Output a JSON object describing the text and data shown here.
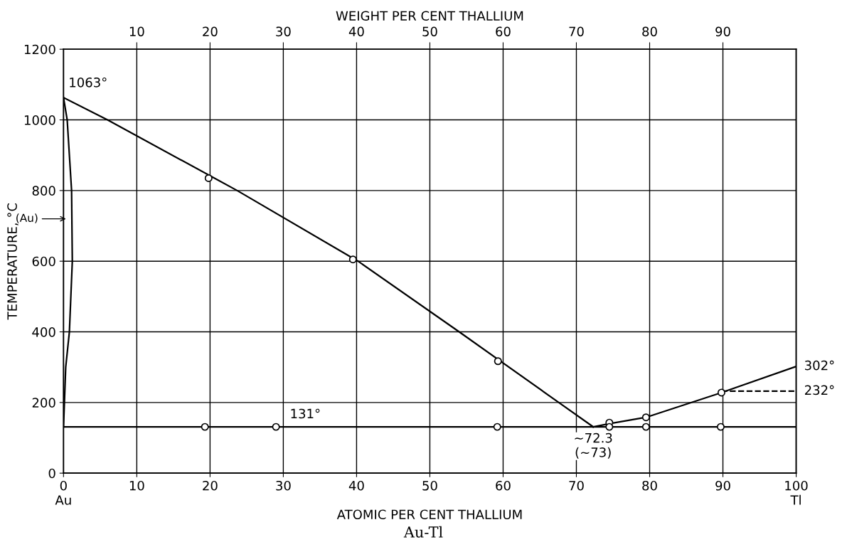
{
  "chart_data": {
    "type": "line",
    "title": "Au-Tl",
    "xlabel": "ATOMIC PER CENT THALLIUM",
    "ylabel": "TEMPERATURE, °C",
    "x2label": "WEIGHT PER CENT THALLIUM",
    "xlim": [
      0,
      100
    ],
    "xticks": [
      {
        "value": 0,
        "label": "0\nAu"
      },
      10,
      20,
      30,
      40,
      50,
      60,
      70,
      80,
      90,
      {
        "value": 100,
        "label": "100\nTl"
      }
    ],
    "x2lim": [
      0,
      100
    ],
    "x2ticks": [
      10,
      20,
      30,
      40,
      50,
      60,
      70,
      80,
      90
    ],
    "ylim": [
      0,
      1200
    ],
    "yticks": [
      0,
      200,
      400,
      600,
      800,
      1000,
      1200
    ],
    "grid": true,
    "legend": false,
    "series": [
      {
        "color": "#000000",
        "x": [
          0,
          6.0,
          23.7,
          40.2,
          54.0,
          67.6,
          72.3
        ],
        "values": [
          1063,
          1000,
          800,
          600,
          400,
          200,
          131
        ]
      },
      {
        "color": "#000000",
        "x": [
          72.3,
          74.5,
          79.5,
          89.8,
          100
        ],
        "values": [
          131,
          140,
          158,
          228,
          302
        ]
      },
      {
        "color": "#000000",
        "x": [
          0,
          100
        ],
        "values": [
          131,
          131
        ]
      },
      {
        "color": "#000000",
        "x": [
          0,
          0.3,
          0.8,
          1.2,
          1.1,
          0.5,
          0
        ],
        "values": [
          131,
          300,
          400,
          600,
          800,
          1000,
          1063
        ]
      },
      {
        "color": "#000000",
        "line_style": "dashed",
        "x": [
          89.8,
          100
        ],
        "values": [
          232,
          232
        ]
      },
      {
        "type": "scatter",
        "color": "#000000",
        "marker": "circle",
        "x": [
          19.8,
          39.5,
          59.3,
          74.5,
          79.5,
          89.8,
          19.3,
          29.0,
          59.2,
          74.5,
          79.5,
          89.7
        ],
        "values": [
          835,
          605,
          317,
          143,
          158,
          228,
          131,
          131,
          131,
          131,
          131,
          131
        ]
      }
    ],
    "annotations": [
      {
        "text": "1063°",
        "x": 0,
        "y": 1063
      },
      {
        "text": "131°",
        "x": 33,
        "y": 131
      },
      {
        "text": "~72.3\n(~73)",
        "x": 72.3,
        "y": 131
      },
      {
        "text": "302°",
        "x": 100,
        "y": 302
      },
      {
        "text": "232°",
        "x": 100,
        "y": 232
      },
      "(Au)"
    ]
  }
}
